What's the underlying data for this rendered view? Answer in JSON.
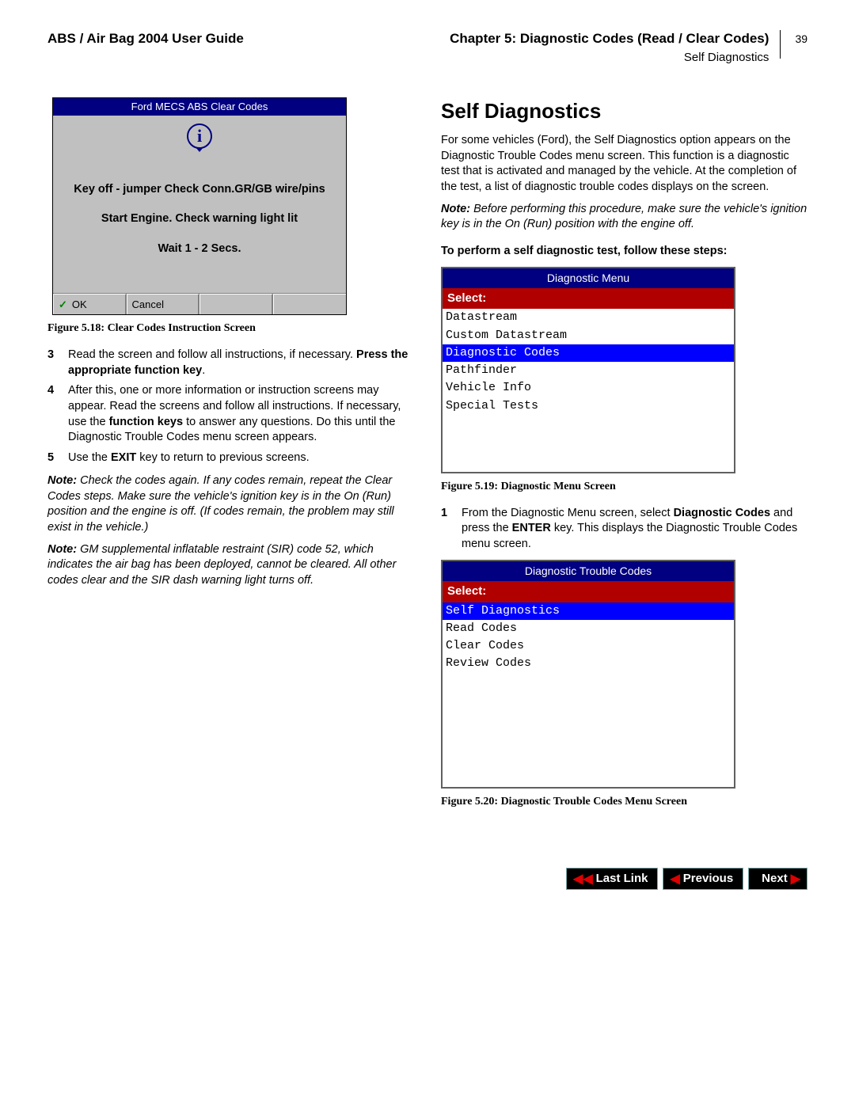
{
  "header": {
    "left": "ABS / Air Bag 2004 User Guide",
    "right": "Chapter 5: Diagnostic Codes (Read / Clear Codes)",
    "sub": "Self Diagnostics",
    "page_number": "39"
  },
  "fig518": {
    "title": "Ford MECS ABS Clear Codes",
    "line1": "Key off - jumper Check Conn.GR/GB wire/pins",
    "line2": "Start Engine. Check warning light lit",
    "line3": "Wait 1 - 2 Secs.",
    "btn_ok": "OK",
    "btn_cancel": "Cancel",
    "caption": "Figure 5.18: Clear Codes Instruction Screen",
    "colors": {
      "titlebar": "#000080",
      "body": "#c0c0c0",
      "check": "#008000"
    }
  },
  "left_steps": {
    "s3_num": "3",
    "s3": "Read the screen and follow all instructions, if necessary. ",
    "s3b": "Press the appropriate function key",
    "s3_tail": ".",
    "s4_num": "4",
    "s4a": "After this, one or more information or instruction screens may appear. Read the screens and follow all instructions. If necessary, use the ",
    "s4b": "function keys",
    "s4c": " to answer any questions. Do this until the Diagnostic Trouble Codes menu screen appears.",
    "s5_num": "5",
    "s5a": "Use the ",
    "s5b": "EXIT",
    "s5c": " key to return to previous screens."
  },
  "left_notes": {
    "n1_label": "Note:",
    "n1": "  Check the codes again. If any codes remain, repeat the Clear Codes steps. Make sure the vehicle's ignition key is in the On (Run) position and the engine is off. (If codes remain, the problem may still exist in the vehicle.)",
    "n2_label": "Note:",
    "n2": "  GM supplemental inflatable restraint (SIR) code 52, which indicates the air bag has been deployed, cannot be cleared. All other codes clear and the SIR dash warning light turns off."
  },
  "right": {
    "heading": "Self Diagnostics",
    "intro": "For some vehicles (Ford), the Self Diagnostics option appears on the Diagnostic Trouble Codes menu screen. This function is a diagnostic test that is activated and managed by the vehicle. At the completion of the test, a list of diagnostic trouble codes displays on the screen.",
    "note_label": "Note:",
    "note": "  Before performing this procedure, make sure the vehicle's ignition key is in the On (Run) position with the engine off.",
    "perform": "To perform a self diagnostic test, follow these steps:",
    "step1_num": "1",
    "step1a": "From the Diagnostic Menu screen, select ",
    "step1b": "Diagnostic Codes",
    "step1c": " and press the ",
    "step1d": "ENTER",
    "step1e": " key. This displays the Diagnostic Trouble Codes menu screen."
  },
  "fig519": {
    "title": "Diagnostic Menu",
    "select": "Select:",
    "items": [
      "Datastream",
      "Custom Datastream",
      "Diagnostic Codes",
      "Pathfinder",
      "Vehicle Info",
      "Special Tests"
    ],
    "selected_index": 2,
    "caption": "Figure 5.19: Diagnostic Menu Screen",
    "blank_rows": 4,
    "colors": {
      "titlebar": "#000080",
      "select_bg": "#b00000",
      "highlight": "#0000ff"
    }
  },
  "fig520": {
    "title": "Diagnostic Trouble Codes",
    "select": "Select:",
    "items": [
      "Self Diagnostics",
      "Read Codes",
      "Clear Codes",
      "Review Codes"
    ],
    "selected_index": 0,
    "caption": "Figure 5.20: Diagnostic Trouble Codes Menu Screen",
    "blank_rows": 8,
    "colors": {
      "titlebar": "#000080",
      "select_bg": "#b00000",
      "highlight": "#0000ff"
    }
  },
  "nav": {
    "last": "Last Link",
    "prev": "Previous",
    "next": "Next"
  }
}
